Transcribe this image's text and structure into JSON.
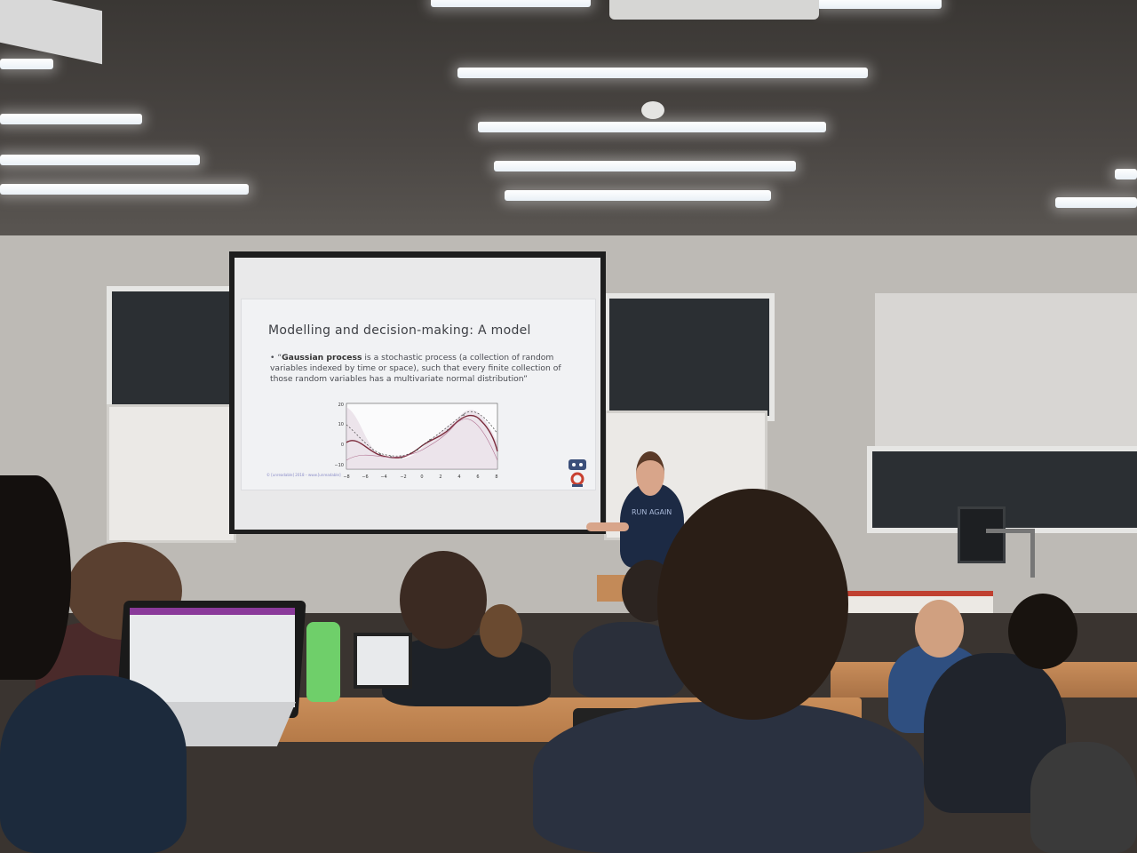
{
  "scene": {
    "colors": {
      "ceiling": "#3a3734",
      "wall": "#bdbab5",
      "slide_bg": "#f1f2f4",
      "desk": "#c98e5a",
      "bottle": "#6fcf6a"
    },
    "icons": [
      "projector-screen",
      "ceiling-light",
      "laptop",
      "water-bottle",
      "monitor"
    ]
  },
  "slide": {
    "title": "Modelling and decision-making: A model",
    "bullet_bold": "Gaussian process",
    "bullet_rest": " is a stochastic process (a collection of random variables indexed by time or space), such that every finite collection of those random variables has a multivariate normal distribution”",
    "bullet_open": "• “",
    "footer": "© [unreadable] 2018 – www.[unreadable]",
    "chart": {
      "y_ticks": [
        "20",
        "10",
        "0",
        "−10"
      ],
      "x_ticks": [
        "−8",
        "−6",
        "−4",
        "−2",
        "0",
        "2",
        "4",
        "6",
        "8"
      ]
    }
  },
  "shirt_text": "RUN AGAIN"
}
